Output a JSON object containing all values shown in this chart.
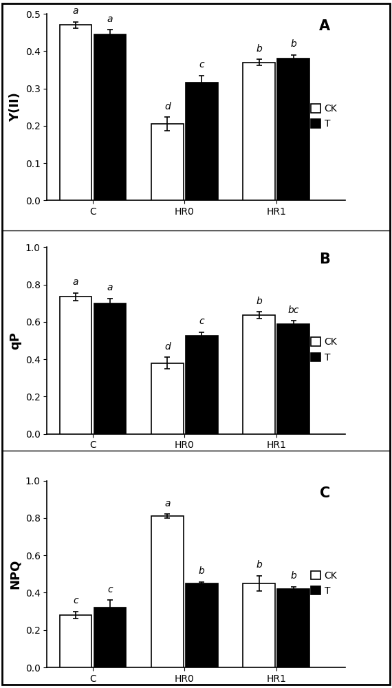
{
  "panels": [
    {
      "label": "A",
      "ylabel": "Y(II)",
      "ylim": [
        0,
        0.5
      ],
      "yticks": [
        0,
        0.1,
        0.2,
        0.3,
        0.4,
        0.5
      ],
      "categories": [
        "C",
        "HR0",
        "HR1"
      ],
      "ck_values": [
        0.47,
        0.205,
        0.37
      ],
      "t_values": [
        0.445,
        0.315,
        0.38
      ],
      "ck_errors": [
        0.008,
        0.018,
        0.008
      ],
      "t_errors": [
        0.012,
        0.02,
        0.01
      ],
      "ck_letters": [
        "a",
        "d",
        "b"
      ],
      "t_letters": [
        "a",
        "c",
        "b"
      ]
    },
    {
      "label": "B",
      "ylabel": "qP",
      "ylim": [
        0,
        1.0
      ],
      "yticks": [
        0,
        0.2,
        0.4,
        0.6,
        0.8,
        1.0
      ],
      "categories": [
        "C",
        "HR0",
        "HR1"
      ],
      "ck_values": [
        0.735,
        0.38,
        0.635
      ],
      "t_values": [
        0.7,
        0.525,
        0.59
      ],
      "ck_errors": [
        0.02,
        0.03,
        0.018
      ],
      "t_errors": [
        0.025,
        0.02,
        0.015
      ],
      "ck_letters": [
        "a",
        "d",
        "b"
      ],
      "t_letters": [
        "a",
        "c",
        "bc"
      ]
    },
    {
      "label": "C",
      "ylabel": "NPQ",
      "ylim": [
        0,
        1.0
      ],
      "yticks": [
        0,
        0.2,
        0.4,
        0.6,
        0.8,
        1.0
      ],
      "categories": [
        "C",
        "HR0",
        "HR1"
      ],
      "ck_values": [
        0.28,
        0.81,
        0.45
      ],
      "t_values": [
        0.32,
        0.45,
        0.42
      ],
      "ck_errors": [
        0.02,
        0.01,
        0.04
      ],
      "t_errors": [
        0.04,
        0.008,
        0.012
      ],
      "ck_letters": [
        "c",
        "a",
        "b"
      ],
      "t_letters": [
        "c",
        "b",
        "b"
      ]
    }
  ],
  "bar_width": 0.28,
  "ck_color": "white",
  "t_color": "black",
  "edge_color": "black",
  "bar_linewidth": 1.2,
  "legend_ck": "CK",
  "legend_t": "T",
  "letter_fontsize": 10,
  "label_fontsize": 13,
  "tick_fontsize": 10,
  "panel_label_fontsize": 15,
  "capsize": 3
}
